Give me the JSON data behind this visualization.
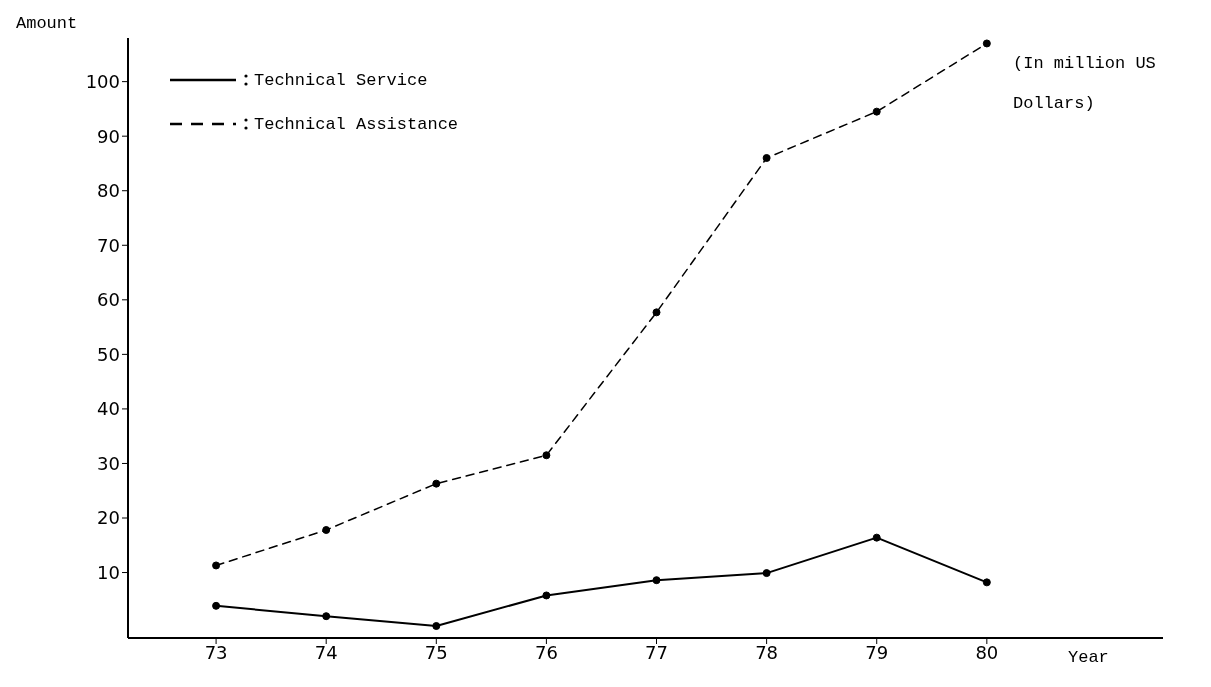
{
  "chart_data": {
    "type": "line",
    "xlabel": "Year",
    "ylabel": "Amount",
    "categories": [
      "73",
      "74",
      "75",
      "76",
      "77",
      "78",
      "79",
      "80"
    ],
    "series": [
      {
        "name": "Technical Service",
        "color": "#000000",
        "line_style": "solid",
        "values": [
          3.9,
          2.0,
          0.2,
          5.8,
          8.6,
          9.9,
          16.4,
          8.2
        ]
      },
      {
        "name": "Technical Assistance",
        "color": "#000000",
        "line_style": "dashed",
        "values": [
          11.3,
          17.8,
          26.3,
          31.5,
          57.7,
          86,
          94.5,
          107
        ]
      }
    ],
    "ylim": [
      -2,
      108
    ],
    "yticks": [
      10,
      20,
      30,
      40,
      50,
      60,
      70,
      80,
      90,
      100
    ],
    "grid": false,
    "legend": "top left",
    "marker": "circle",
    "annotations": [
      "(In million US Dollars)"
    ]
  }
}
